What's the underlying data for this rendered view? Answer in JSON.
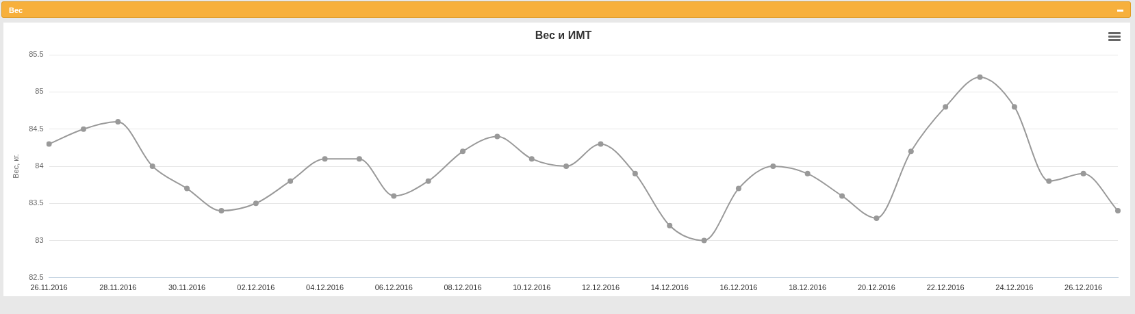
{
  "chart_data": {
    "type": "line",
    "title": "Вес и ИМТ",
    "ylabel": "Вес, кг.",
    "annotations": [
      "Вес"
    ],
    "categories": [
      "26.11.2016",
      null,
      "28.11.2016",
      null,
      "30.11.2016",
      null,
      "02.12.2016",
      null,
      "04.12.2016",
      null,
      "06.12.2016",
      null,
      "08.12.2016",
      null,
      "10.12.2016",
      null,
      "12.12.2016",
      null,
      "14.12.2016",
      null,
      "16.12.2016",
      null,
      "18.12.2016",
      null,
      "20.12.2016",
      null,
      "22.12.2016",
      null,
      "24.12.2016",
      null,
      "26.12.2016",
      null
    ],
    "series": [
      {
        "color": "#999999",
        "values": [
          84.3,
          84.5,
          84.6,
          84.0,
          83.7,
          83.4,
          83.5,
          83.8,
          84.1,
          84.1,
          83.6,
          83.8,
          84.2,
          84.4,
          84.1,
          84.0,
          84.3,
          83.9,
          83.2,
          83.0,
          83.7,
          84.0,
          83.9,
          83.6,
          83.3,
          84.2,
          84.8,
          85.2,
          84.8,
          83.8,
          83.9,
          83.4
        ]
      }
    ],
    "ylim": [
      82.5,
      85.5
    ],
    "yticks": [
      82.5,
      83,
      83.5,
      84,
      84.5,
      85,
      85.5
    ],
    "grid": "y",
    "legend": false,
    "marker": "circle",
    "line_style": "solid"
  }
}
